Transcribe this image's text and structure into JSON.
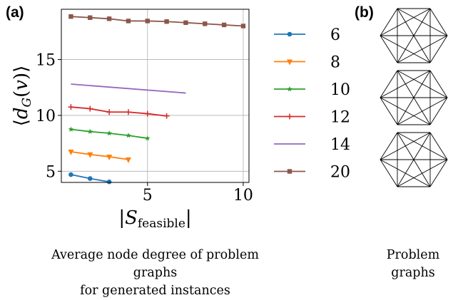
{
  "panel_a_label": "(a)",
  "panel_b_label": "(b)",
  "caption_a": [
    "Average node degree of problem graphs",
    "for generated instances"
  ],
  "caption_b": [
    "Problem",
    "graphs"
  ],
  "chart_data": {
    "type": "line",
    "xlabel": "|S_feasible|",
    "ylabel": "⟨d_G(v)⟩",
    "xlim": [
      0.5,
      10.3
    ],
    "ylim": [
      4.0,
      19.5
    ],
    "xticks": [
      5,
      10
    ],
    "yticks": [
      5,
      10,
      15
    ],
    "grid": true,
    "legend_position": "right-outside",
    "series": [
      {
        "name": "6",
        "color": "#1f77b4",
        "marker": "circle",
        "x": [
          1,
          2,
          3
        ],
        "y": [
          4.7,
          4.35,
          4.05
        ]
      },
      {
        "name": "8",
        "color": "#ff7f0e",
        "marker": "triangle",
        "x": [
          1,
          2,
          3,
          4
        ],
        "y": [
          6.75,
          6.5,
          6.3,
          6.05
        ]
      },
      {
        "name": "10",
        "color": "#2ca02c",
        "marker": "star",
        "x": [
          1,
          2,
          3,
          4,
          5
        ],
        "y": [
          8.75,
          8.55,
          8.4,
          8.2,
          7.95
        ]
      },
      {
        "name": "12",
        "color": "#d62728",
        "marker": "plus",
        "x": [
          1,
          2,
          3,
          4,
          5,
          6
        ],
        "y": [
          10.75,
          10.6,
          10.3,
          10.3,
          10.15,
          9.95
        ]
      },
      {
        "name": "14",
        "color": "#9467bd",
        "marker": "none",
        "x": [
          1,
          7
        ],
        "y": [
          12.8,
          12.0
        ]
      },
      {
        "name": "20",
        "color": "#8c564b",
        "marker": "square",
        "x": [
          1,
          2,
          3,
          4,
          5,
          6,
          7,
          8,
          9,
          10
        ],
        "y": [
          18.85,
          18.75,
          18.65,
          18.45,
          18.45,
          18.4,
          18.3,
          18.2,
          18.1,
          18.0
        ]
      }
    ]
  },
  "graphs": {
    "count": 3,
    "color": "#000000"
  }
}
